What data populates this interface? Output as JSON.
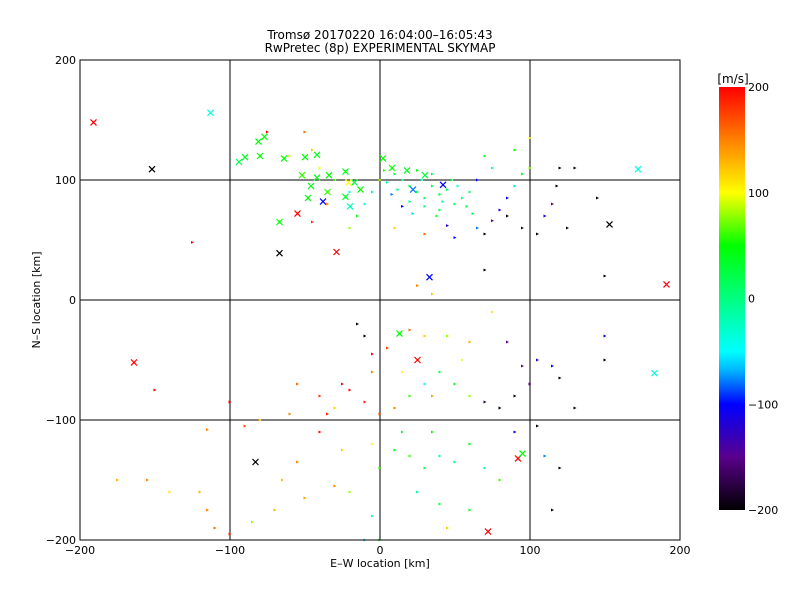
{
  "chart_data": {
    "type": "scatter",
    "title": "Tromsø 20170220 16:04:00–16:05:43",
    "subtitle": "RwPretec (8p) EXPERIMENTAL SKYMAP",
    "xlabel": "E–W location [km]",
    "ylabel": "N–S location [km]",
    "xlim": [
      -200,
      200
    ],
    "ylim": [
      -200,
      200
    ],
    "xticks": [
      "−200",
      "−100",
      "0",
      "100",
      "200"
    ],
    "yticks": [
      "−200",
      "−100",
      "0",
      "100",
      "200"
    ],
    "grid": true,
    "colorbar": {
      "label": "[m/s]",
      "range": [
        -200,
        200
      ],
      "ticks": [
        "200",
        "100",
        "0",
        "−100",
        "−200"
      ],
      "colors": [
        "#000000",
        "#5a008c",
        "#0000ff",
        "#00c8ff",
        "#00ffff",
        "#00ff80",
        "#00ff00",
        "#ffff00",
        "#ff8000",
        "#ff0000"
      ]
    },
    "points_format": [
      "x_km",
      "y_km",
      "velocity_m_s",
      "marker"
    ],
    "points": [
      [
        -191,
        148,
        200,
        "x"
      ],
      [
        -113,
        156,
        -40,
        "x"
      ],
      [
        -152,
        109,
        -200,
        "x"
      ],
      [
        -55,
        72,
        200,
        "x"
      ],
      [
        -67,
        65,
        50,
        "x"
      ],
      [
        -29,
        40,
        200,
        "x"
      ],
      [
        -67,
        39,
        -200,
        "x"
      ],
      [
        33,
        19,
        -100,
        "x"
      ],
      [
        153,
        63,
        -200,
        "x"
      ],
      [
        191,
        13,
        200,
        "x"
      ],
      [
        172,
        109,
        -40,
        "x"
      ],
      [
        13,
        -28,
        50,
        "x"
      ],
      [
        25,
        -50,
        200,
        "x"
      ],
      [
        -164,
        -52,
        200,
        "x"
      ],
      [
        183,
        -61,
        -40,
        "x"
      ],
      [
        -83,
        -135,
        -200,
        "x"
      ],
      [
        92,
        -132,
        200,
        "x"
      ],
      [
        95,
        -128,
        50,
        "x"
      ],
      [
        72,
        -193,
        200,
        "x"
      ],
      [
        -81,
        132,
        50,
        "x"
      ],
      [
        -77,
        136,
        50,
        "x"
      ],
      [
        -90,
        119,
        40,
        "x"
      ],
      [
        -94,
        115,
        20,
        "x"
      ],
      [
        -80,
        120,
        50,
        "x"
      ],
      [
        -64,
        118,
        50,
        "x"
      ],
      [
        -50,
        119,
        50,
        "x"
      ],
      [
        -42,
        121,
        40,
        "x"
      ],
      [
        -52,
        104,
        60,
        "x"
      ],
      [
        -42,
        102,
        40,
        "x"
      ],
      [
        -34,
        104,
        50,
        "x"
      ],
      [
        -23,
        107,
        40,
        "x"
      ],
      [
        -17,
        98,
        30,
        "x"
      ],
      [
        -35,
        90,
        60,
        "x"
      ],
      [
        -21,
        98,
        100,
        "x"
      ],
      [
        -48,
        85,
        50,
        "x"
      ],
      [
        -46,
        95,
        40,
        "x"
      ],
      [
        -20,
        78,
        -20,
        "x"
      ],
      [
        -23,
        86,
        30,
        "x"
      ],
      [
        -13,
        92,
        50,
        "x"
      ],
      [
        2,
        118,
        50,
        "x"
      ],
      [
        8,
        110,
        50,
        "x"
      ],
      [
        18,
        108,
        40,
        "x"
      ],
      [
        30,
        104,
        30,
        "x"
      ],
      [
        42,
        96,
        -100,
        "x"
      ],
      [
        22,
        92,
        -80,
        "x"
      ],
      [
        -38,
        82,
        -100,
        "x"
      ],
      [
        10,
        105,
        20,
        "d"
      ],
      [
        15,
        100,
        10,
        "d"
      ],
      [
        20,
        95,
        30,
        "d"
      ],
      [
        25,
        90,
        20,
        "d"
      ],
      [
        30,
        85,
        10,
        "d"
      ],
      [
        35,
        95,
        20,
        "d"
      ],
      [
        40,
        88,
        30,
        "d"
      ],
      [
        45,
        92,
        10,
        "d"
      ],
      [
        50,
        80,
        20,
        "d"
      ],
      [
        55,
        85,
        0,
        "d"
      ],
      [
        40,
        75,
        20,
        "d"
      ],
      [
        30,
        78,
        10,
        "d"
      ],
      [
        20,
        82,
        -10,
        "d"
      ],
      [
        60,
        90,
        10,
        "d"
      ],
      [
        48,
        100,
        30,
        "d"
      ],
      [
        35,
        105,
        20,
        "d"
      ],
      [
        25,
        108,
        40,
        "d"
      ],
      [
        5,
        98,
        -20,
        "d"
      ],
      [
        12,
        92,
        0,
        "d"
      ],
      [
        28,
        100,
        -30,
        "d"
      ],
      [
        42,
        82,
        -10,
        "d"
      ],
      [
        52,
        95,
        -40,
        "d"
      ],
      [
        58,
        78,
        30,
        "d"
      ],
      [
        62,
        72,
        20,
        "d"
      ],
      [
        38,
        70,
        40,
        "d"
      ],
      [
        22,
        72,
        -60,
        "d"
      ],
      [
        15,
        78,
        -100,
        "d"
      ],
      [
        8,
        88,
        -80,
        "d"
      ],
      [
        3,
        108,
        60,
        "d"
      ],
      [
        0,
        100,
        80,
        "d"
      ],
      [
        -5,
        90,
        -60,
        "d"
      ],
      [
        -10,
        80,
        -40,
        "d"
      ],
      [
        -15,
        70,
        40,
        "d"
      ],
      [
        -20,
        60,
        80,
        "d"
      ],
      [
        10,
        60,
        120,
        "d"
      ],
      [
        30,
        55,
        160,
        "d"
      ],
      [
        50,
        52,
        -100,
        "d"
      ],
      [
        45,
        62,
        -120,
        "d"
      ],
      [
        65,
        60,
        -80,
        "d"
      ],
      [
        70,
        55,
        -200,
        "d"
      ],
      [
        75,
        66,
        -140,
        "d"
      ],
      [
        80,
        75,
        -120,
        "d"
      ],
      [
        85,
        85,
        -100,
        "d"
      ],
      [
        90,
        95,
        -60,
        "d"
      ],
      [
        95,
        105,
        30,
        "d"
      ],
      [
        100,
        110,
        80,
        "d"
      ],
      [
        85,
        70,
        -200,
        "d"
      ],
      [
        95,
        60,
        -180,
        "d"
      ],
      [
        105,
        55,
        -200,
        "d"
      ],
      [
        110,
        70,
        -100,
        "d"
      ],
      [
        115,
        80,
        -150,
        "d"
      ],
      [
        118,
        95,
        -200,
        "d"
      ],
      [
        120,
        110,
        -200,
        "d"
      ],
      [
        130,
        110,
        -200,
        "d"
      ],
      [
        145,
        85,
        -200,
        "d"
      ],
      [
        125,
        60,
        -200,
        "d"
      ],
      [
        65,
        100,
        -100,
        "d"
      ],
      [
        75,
        110,
        -20,
        "d"
      ],
      [
        70,
        120,
        40,
        "d"
      ],
      [
        90,
        125,
        50,
        "d"
      ],
      [
        100,
        135,
        100,
        "d"
      ],
      [
        -30,
        100,
        60,
        "d"
      ],
      [
        -40,
        110,
        100,
        "d"
      ],
      [
        -45,
        125,
        120,
        "d"
      ],
      [
        -50,
        140,
        160,
        "d"
      ],
      [
        -20,
        90,
        -40,
        "d"
      ],
      [
        -35,
        80,
        150,
        "d"
      ],
      [
        -45,
        65,
        180,
        "d"
      ],
      [
        -60,
        120,
        90,
        "d"
      ],
      [
        -75,
        140,
        200,
        "d"
      ],
      [
        -125,
        48,
        200,
        "d"
      ],
      [
        150,
        20,
        -200,
        "d"
      ],
      [
        70,
        25,
        -200,
        "d"
      ],
      [
        35,
        5,
        120,
        "d"
      ],
      [
        25,
        12,
        150,
        "d"
      ],
      [
        -15,
        -20,
        -200,
        "d"
      ],
      [
        -10,
        -30,
        -200,
        "d"
      ],
      [
        -5,
        -45,
        200,
        "d"
      ],
      [
        5,
        -40,
        180,
        "d"
      ],
      [
        20,
        -25,
        160,
        "d"
      ],
      [
        30,
        -30,
        120,
        "d"
      ],
      [
        45,
        -30,
        80,
        "d"
      ],
      [
        55,
        -50,
        100,
        "d"
      ],
      [
        60,
        -35,
        130,
        "d"
      ],
      [
        75,
        -10,
        110,
        "d"
      ],
      [
        85,
        -35,
        -150,
        "d"
      ],
      [
        95,
        -55,
        -150,
        "d"
      ],
      [
        105,
        -50,
        -120,
        "d"
      ],
      [
        115,
        -55,
        -100,
        "d"
      ],
      [
        120,
        -65,
        -200,
        "d"
      ],
      [
        100,
        -70,
        -160,
        "d"
      ],
      [
        90,
        -80,
        -200,
        "d"
      ],
      [
        80,
        -90,
        -200,
        "d"
      ],
      [
        70,
        -85,
        -180,
        "d"
      ],
      [
        60,
        -80,
        80,
        "d"
      ],
      [
        50,
        -70,
        40,
        "d"
      ],
      [
        40,
        -60,
        20,
        "d"
      ],
      [
        30,
        -70,
        -40,
        "d"
      ],
      [
        20,
        -80,
        60,
        "d"
      ],
      [
        10,
        -90,
        150,
        "d"
      ],
      [
        0,
        -95,
        170,
        "d"
      ],
      [
        -10,
        -85,
        190,
        "d"
      ],
      [
        -20,
        -75,
        200,
        "d"
      ],
      [
        -30,
        -90,
        120,
        "d"
      ],
      [
        -40,
        -110,
        200,
        "d"
      ],
      [
        -60,
        -95,
        150,
        "d"
      ],
      [
        -80,
        -100,
        130,
        "d"
      ],
      [
        -100,
        -85,
        200,
        "d"
      ],
      [
        -90,
        -105,
        170,
        "d"
      ],
      [
        -115,
        -108,
        150,
        "d"
      ],
      [
        -150,
        -75,
        200,
        "d"
      ],
      [
        -175,
        -150,
        130,
        "d"
      ],
      [
        -155,
        -150,
        150,
        "d"
      ],
      [
        -140,
        -160,
        110,
        "d"
      ],
      [
        -120,
        -160,
        130,
        "d"
      ],
      [
        -115,
        -175,
        150,
        "d"
      ],
      [
        -100,
        -195,
        180,
        "d"
      ],
      [
        -110,
        -190,
        160,
        "d"
      ],
      [
        -85,
        -185,
        80,
        "d"
      ],
      [
        -70,
        -175,
        130,
        "d"
      ],
      [
        -50,
        -165,
        140,
        "d"
      ],
      [
        -30,
        -155,
        150,
        "d"
      ],
      [
        -20,
        -160,
        80,
        "d"
      ],
      [
        0,
        -140,
        60,
        "d"
      ],
      [
        10,
        -125,
        40,
        "d"
      ],
      [
        20,
        -130,
        60,
        "d"
      ],
      [
        30,
        -140,
        20,
        "d"
      ],
      [
        40,
        -130,
        -20,
        "d"
      ],
      [
        50,
        -135,
        10,
        "d"
      ],
      [
        60,
        -120,
        40,
        "d"
      ],
      [
        70,
        -140,
        -10,
        "d"
      ],
      [
        80,
        -150,
        60,
        "d"
      ],
      [
        90,
        -110,
        -100,
        "d"
      ],
      [
        105,
        -105,
        -200,
        "d"
      ],
      [
        110,
        -130,
        -80,
        "d"
      ],
      [
        120,
        -140,
        -200,
        "d"
      ],
      [
        115,
        -175,
        -200,
        "d"
      ],
      [
        150,
        -30,
        -100,
        "d"
      ],
      [
        150,
        -50,
        -200,
        "d"
      ],
      [
        130,
        -90,
        -200,
        "d"
      ],
      [
        25,
        -160,
        -20,
        "d"
      ],
      [
        40,
        -170,
        30,
        "d"
      ],
      [
        60,
        -175,
        40,
        "d"
      ],
      [
        -5,
        -180,
        -40,
        "d"
      ],
      [
        -10,
        -200,
        -60,
        "d"
      ],
      [
        0,
        -200,
        30,
        "d"
      ],
      [
        45,
        -190,
        120,
        "d"
      ],
      [
        35,
        -110,
        50,
        "d"
      ],
      [
        15,
        -110,
        30,
        "d"
      ],
      [
        -5,
        -120,
        100,
        "d"
      ],
      [
        -25,
        -125,
        120,
        "d"
      ],
      [
        -55,
        -135,
        150,
        "d"
      ],
      [
        -65,
        -150,
        130,
        "d"
      ],
      [
        -55,
        -70,
        160,
        "d"
      ],
      [
        -40,
        -80,
        180,
        "d"
      ],
      [
        -35,
        -95,
        190,
        "d"
      ],
      [
        -5,
        -60,
        150,
        "d"
      ],
      [
        15,
        -60,
        100,
        "d"
      ],
      [
        35,
        -80,
        140,
        "d"
      ],
      [
        -25,
        -70,
        200,
        "d"
      ]
    ]
  }
}
